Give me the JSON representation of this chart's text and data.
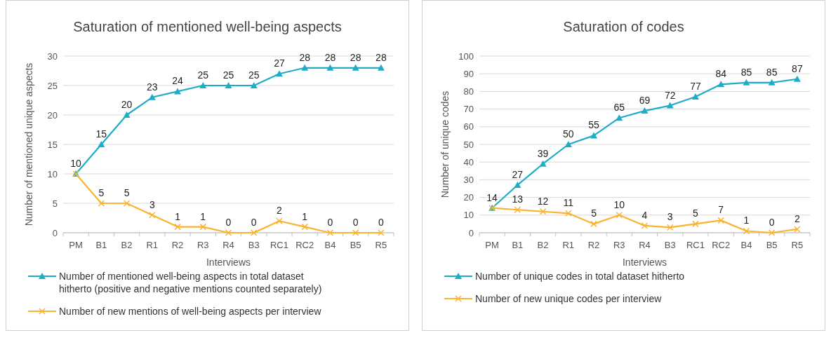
{
  "chart_data": [
    {
      "type": "line",
      "title": "Saturation of mentioned well-being aspects",
      "xlabel": "Interviews",
      "ylabel": "Number of mentioned unique aspects",
      "categories": [
        "PM",
        "B1",
        "B2",
        "R1",
        "R2",
        "R3",
        "R4",
        "B3",
        "RC1",
        "RC2",
        "B4",
        "B5",
        "R5"
      ],
      "ylim": [
        0,
        30
      ],
      "yticks": [
        0,
        5,
        10,
        15,
        20,
        25,
        30
      ],
      "grid": "y",
      "legend": "bottom",
      "series": [
        {
          "name": "Number of mentioned well-being aspects in total dataset hitherto (positive and negative mentions counted separately)",
          "color": "#1eadc8",
          "marker": "triangle",
          "values": [
            10,
            15,
            20,
            23,
            24,
            25,
            25,
            25,
            27,
            28,
            28,
            28,
            28
          ],
          "value_labels": [
            "10",
            "15",
            "20",
            "23",
            "24",
            "25",
            "25",
            "25",
            "27",
            "28",
            "28",
            "28",
            "28"
          ]
        },
        {
          "name": "Number of new mentions of well-being aspects per interview",
          "color": "#fbb330",
          "marker": "cross",
          "values": [
            10,
            5,
            5,
            3,
            1,
            1,
            0,
            0,
            2,
            1,
            0,
            0,
            0
          ],
          "value_labels": [
            null,
            "5",
            "5",
            "3",
            "1",
            "1",
            "0",
            "0",
            "2",
            "1",
            "0",
            "0",
            "0"
          ]
        }
      ]
    },
    {
      "type": "line",
      "title": "Saturation of codes",
      "xlabel": "Interviews",
      "ylabel": "Number of unique codes",
      "categories": [
        "PM",
        "B1",
        "B2",
        "R1",
        "R2",
        "R3",
        "R4",
        "B3",
        "RC1",
        "RC2",
        "B4",
        "B5",
        "R5"
      ],
      "ylim": [
        0,
        100
      ],
      "yticks": [
        0,
        10,
        20,
        30,
        40,
        50,
        60,
        70,
        80,
        90,
        100
      ],
      "grid": "y",
      "legend": "bottom",
      "series": [
        {
          "name": "Number of unique codes in total dataset hitherto",
          "color": "#1eadc8",
          "marker": "triangle",
          "values": [
            14,
            27,
            39,
            50,
            55,
            65,
            69,
            72,
            77,
            84,
            85,
            85,
            87
          ],
          "value_labels": [
            "14",
            "27",
            "39",
            "50",
            "55",
            "65",
            "69",
            "72",
            "77",
            "84",
            "85",
            "85",
            "87"
          ]
        },
        {
          "name": "Number of new unique codes per interview",
          "color": "#fbb330",
          "marker": "cross",
          "values": [
            14,
            13,
            12,
            11,
            5,
            10,
            4,
            3,
            5,
            7,
            1,
            0,
            2
          ],
          "value_labels": [
            null,
            "13",
            "12",
            "11",
            "5",
            "10",
            "4",
            "3",
            "5",
            "7",
            "1",
            "0",
            "2"
          ]
        }
      ]
    }
  ]
}
